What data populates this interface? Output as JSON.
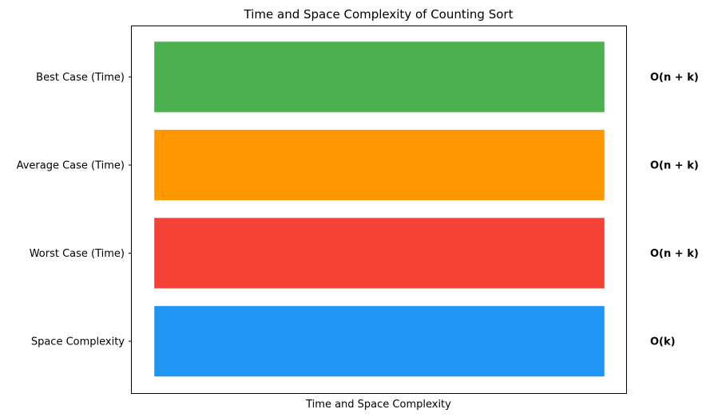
{
  "chart_data": {
    "type": "bar",
    "orientation": "horizontal",
    "title": "Time and Space Complexity of Counting Sort",
    "xlabel": "Time and Space Complexity",
    "ylabel": "",
    "categories": [
      "Best Case (Time)",
      "Average Case (Time)",
      "Worst Case (Time)",
      "Space Complexity"
    ],
    "values": [
      1,
      1,
      1,
      1
    ],
    "value_labels": [
      "O(n + k)",
      "O(n + k)",
      "O(n + k)",
      "O(k)"
    ],
    "colors": [
      "#4caf50",
      "#ff9800",
      "#f44336",
      "#2196f3"
    ],
    "x_ticks_visible": false,
    "grid": false,
    "legend": "none"
  }
}
